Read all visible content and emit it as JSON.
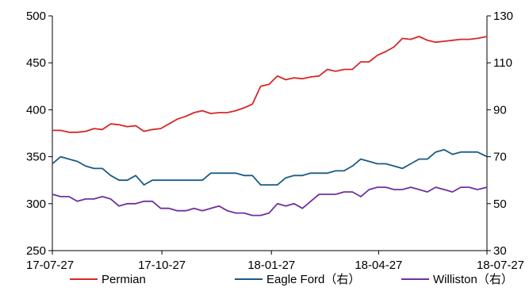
{
  "chart_data": {
    "type": "line",
    "title": "",
    "xlabel": "",
    "ylabel": "",
    "y2label": "",
    "x_ticks": [
      "17-07-27",
      "17-10-27",
      "18-01-27",
      "18-04-27",
      "18-07-27"
    ],
    "x_range": [
      "17-07-27",
      "18-07-27"
    ],
    "ylim": [
      250,
      500
    ],
    "y_ticks": [
      250,
      300,
      350,
      400,
      450,
      500
    ],
    "y2lim": [
      30,
      130
    ],
    "y2_ticks": [
      30,
      50,
      70,
      90,
      110,
      130
    ],
    "grid": false,
    "legend_position": "bottom",
    "series": [
      {
        "name": "Permian",
        "axis": "left",
        "color": "#d62728",
        "x": [
          "17-07-27",
          "17-08-03",
          "17-08-10",
          "17-08-17",
          "17-08-24",
          "17-08-31",
          "17-09-07",
          "17-09-14",
          "17-09-21",
          "17-09-28",
          "17-10-05",
          "17-10-12",
          "17-10-19",
          "17-10-26",
          "17-11-02",
          "17-11-09",
          "17-11-16",
          "17-11-23",
          "17-11-30",
          "17-12-07",
          "17-12-14",
          "17-12-21",
          "17-12-28",
          "18-01-04",
          "18-01-11",
          "18-01-18",
          "18-01-25",
          "18-02-01",
          "18-02-08",
          "18-02-15",
          "18-02-22",
          "18-03-01",
          "18-03-08",
          "18-03-15",
          "18-03-22",
          "18-03-29",
          "18-04-05",
          "18-04-12",
          "18-04-19",
          "18-04-26",
          "18-05-03",
          "18-05-10",
          "18-05-17",
          "18-05-24",
          "18-05-31",
          "18-06-07",
          "18-06-14",
          "18-06-21",
          "18-06-28",
          "18-07-05",
          "18-07-12",
          "18-07-19",
          "18-07-27"
        ],
        "values": [
          378,
          378,
          376,
          376,
          377,
          380,
          379,
          385,
          384,
          382,
          383,
          377,
          379,
          380,
          385,
          390,
          393,
          397,
          399,
          396,
          397,
          397,
          399,
          402,
          406,
          425,
          427,
          436,
          432,
          434,
          433,
          435,
          436,
          443,
          441,
          443,
          443,
          451,
          451,
          458,
          462,
          467,
          476,
          475,
          478,
          474,
          472,
          473,
          474,
          475,
          475,
          476,
          478
        ]
      },
      {
        "name": "Eagle Ford（右）",
        "axis": "right",
        "color": "#1a5b84",
        "x": [
          "17-07-27",
          "17-08-03",
          "17-08-10",
          "17-08-17",
          "17-08-24",
          "17-08-31",
          "17-09-07",
          "17-09-14",
          "17-09-21",
          "17-09-28",
          "17-10-05",
          "17-10-12",
          "17-10-19",
          "17-10-26",
          "17-11-02",
          "17-11-09",
          "17-11-16",
          "17-11-23",
          "17-11-30",
          "17-12-07",
          "17-12-14",
          "17-12-21",
          "17-12-28",
          "18-01-04",
          "18-01-11",
          "18-01-18",
          "18-01-25",
          "18-02-01",
          "18-02-08",
          "18-02-15",
          "18-02-22",
          "18-03-01",
          "18-03-08",
          "18-03-15",
          "18-03-22",
          "18-03-29",
          "18-04-05",
          "18-04-12",
          "18-04-19",
          "18-04-26",
          "18-05-03",
          "18-05-10",
          "18-05-17",
          "18-05-24",
          "18-05-31",
          "18-06-07",
          "18-06-14",
          "18-06-21",
          "18-06-28",
          "18-07-05",
          "18-07-12",
          "18-07-19",
          "18-07-27"
        ],
        "values": [
          67,
          70,
          69,
          68,
          66,
          65,
          65,
          62,
          60,
          60,
          62,
          58,
          60,
          60,
          60,
          60,
          60,
          60,
          60,
          63,
          63,
          63,
          63,
          62,
          62,
          58,
          58,
          58,
          61,
          62,
          62,
          63,
          63,
          63,
          64,
          64,
          66,
          69,
          68,
          67,
          67,
          66,
          65,
          67,
          69,
          69,
          72,
          73,
          71,
          72,
          72,
          72,
          70
        ]
      },
      {
        "name": "Williston（右）",
        "axis": "right",
        "color": "#7030a0",
        "x": [
          "17-07-27",
          "17-08-03",
          "17-08-10",
          "17-08-17",
          "17-08-24",
          "17-08-31",
          "17-09-07",
          "17-09-14",
          "17-09-21",
          "17-09-28",
          "17-10-05",
          "17-10-12",
          "17-10-19",
          "17-10-26",
          "17-11-02",
          "17-11-09",
          "17-11-16",
          "17-11-23",
          "17-11-30",
          "17-12-07",
          "17-12-14",
          "17-12-21",
          "17-12-28",
          "18-01-04",
          "18-01-11",
          "18-01-18",
          "18-01-25",
          "18-02-01",
          "18-02-08",
          "18-02-15",
          "18-02-22",
          "18-03-01",
          "18-03-08",
          "18-03-15",
          "18-03-22",
          "18-03-29",
          "18-04-05",
          "18-04-12",
          "18-04-19",
          "18-04-26",
          "18-05-03",
          "18-05-10",
          "18-05-17",
          "18-05-24",
          "18-05-31",
          "18-06-07",
          "18-06-14",
          "18-06-21",
          "18-06-28",
          "18-07-05",
          "18-07-12",
          "18-07-19",
          "18-07-27"
        ],
        "values": [
          54,
          53,
          53,
          51,
          52,
          52,
          53,
          52,
          49,
          50,
          50,
          51,
          51,
          48,
          48,
          47,
          47,
          48,
          47,
          48,
          49,
          47,
          46,
          46,
          45,
          45,
          46,
          50,
          49,
          50,
          48,
          51,
          54,
          54,
          54,
          55,
          55,
          53,
          56,
          57,
          57,
          56,
          56,
          57,
          56,
          55,
          57,
          56,
          55,
          57,
          57,
          56,
          57
        ]
      }
    ]
  }
}
